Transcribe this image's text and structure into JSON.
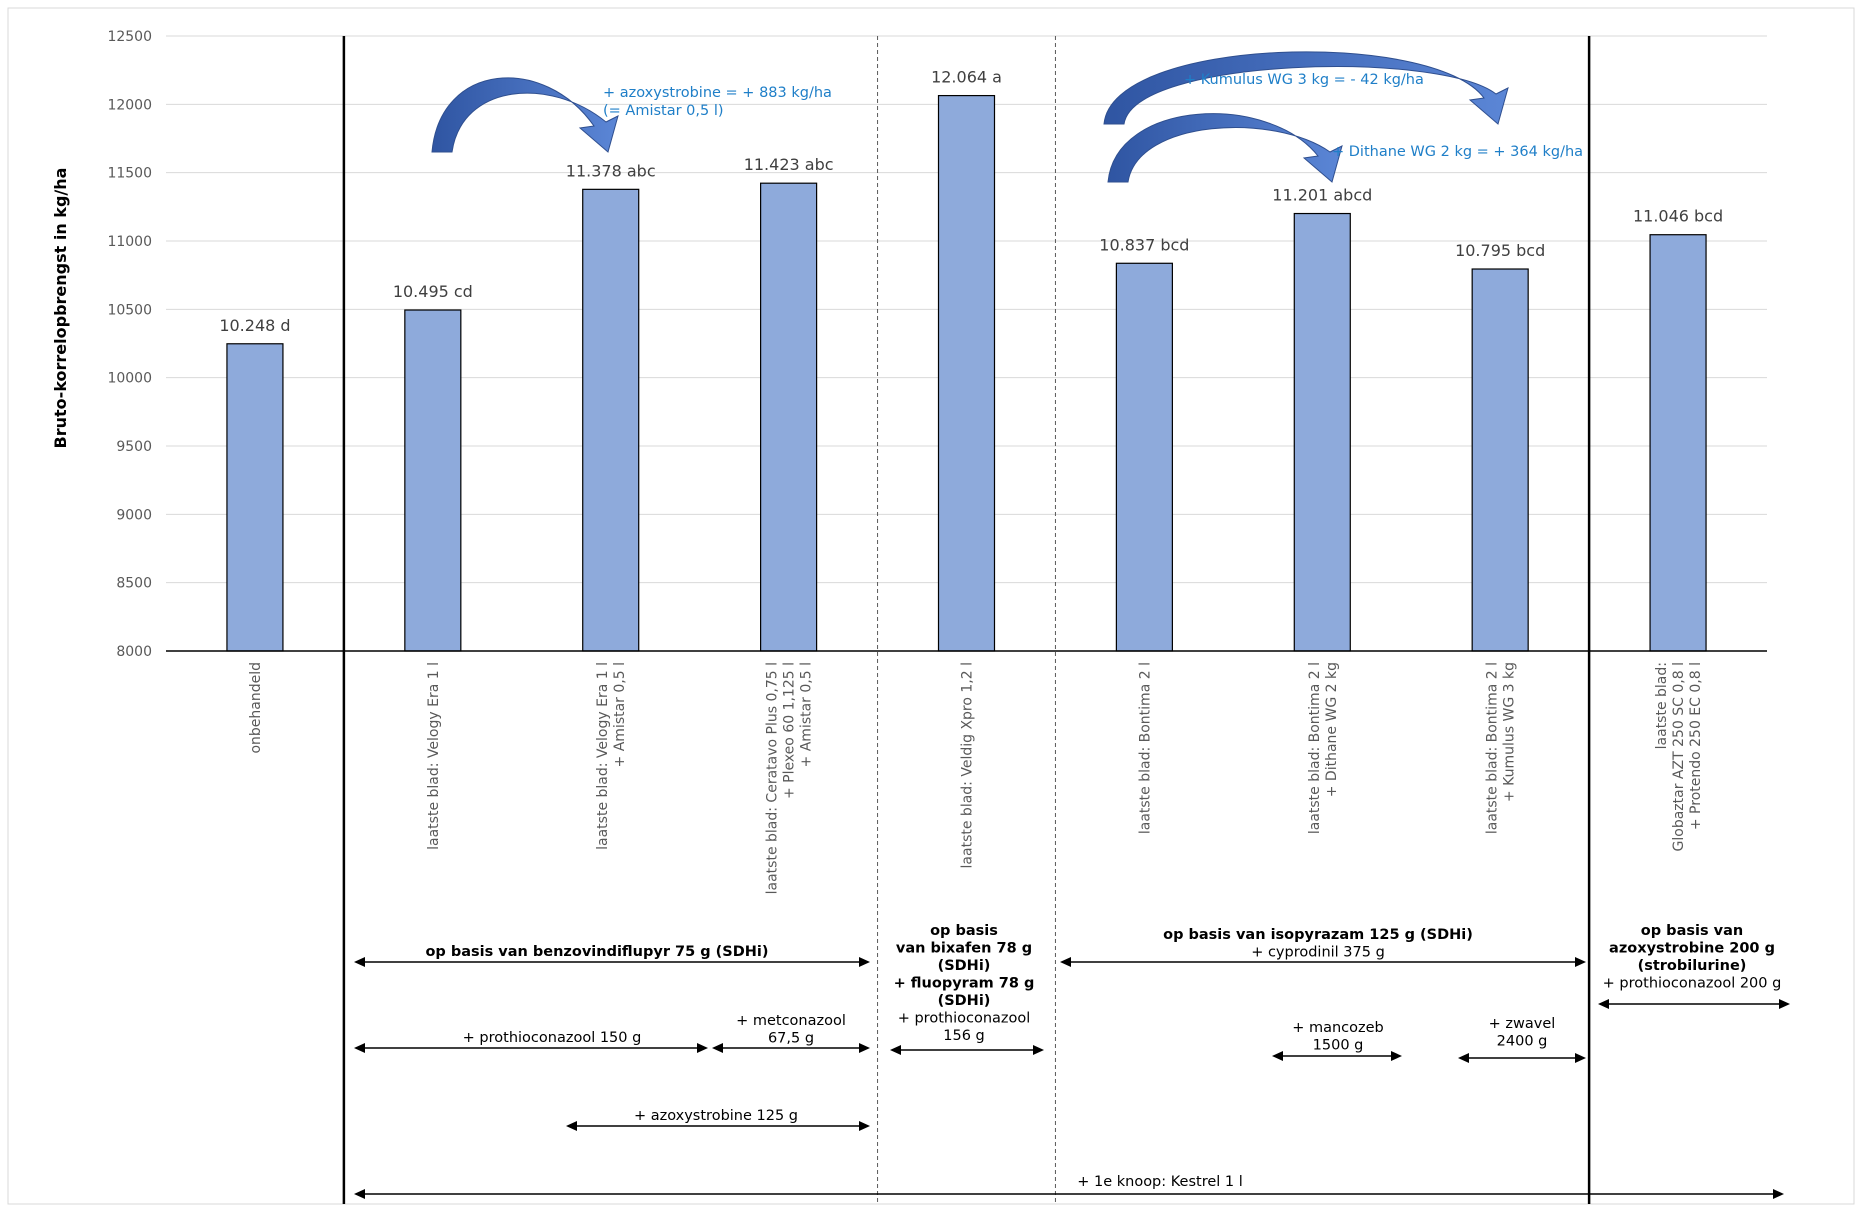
{
  "chart_data": {
    "type": "bar",
    "ylabel": "Bruto-korrelopbrengst in kg/ha",
    "ylim": [
      8000,
      12500
    ],
    "yticks": [
      "8000",
      "8500",
      "9000",
      "9500",
      "10000",
      "10500",
      "11000",
      "11500",
      "12000",
      "12500"
    ],
    "grid": true,
    "bar_color": "#8eaadb",
    "categories": [
      [
        "onbehandeld"
      ],
      [
        "laatste blad: Velogy Era 1 l"
      ],
      [
        "laatste blad: Velogy Era 1 l",
        "+ Amistar 0,5 l"
      ],
      [
        "laatste blad: Ceratavo Plus 0,75 l",
        "+ Plexeo 60 1,125 l",
        "+ Amistar 0,5 l"
      ],
      [
        "laatste blad: Veldig Xpro 1,2 l"
      ],
      [
        "laatste blad: Bontima 2 l"
      ],
      [
        "laatste blad: Bontima 2 l",
        "+ Dithane WG 2 kg"
      ],
      [
        "laatste blad: Bontima 2 l",
        "+ Kumulus WG 3 kg"
      ],
      [
        "laatste blad:",
        "Globaztar AZT 250 SC 0,8 l",
        "+ Protendo 250 EC 0,8 l"
      ]
    ],
    "values": [
      10248,
      10495,
      11378,
      11423,
      12064,
      10837,
      11201,
      10795,
      11046
    ],
    "data_labels": [
      "10.248  d",
      "10.495  cd",
      "11.378  abc",
      "11.423  abc",
      "12.064  a",
      "10.837  bcd",
      "11.201  abcd",
      "10.795  bcd",
      "11.046  bcd"
    ],
    "annotations": [
      {
        "lines": [
          "+ azoxystrobine = + 883 kg/ha",
          "(= Amistar 0,5 l)"
        ],
        "from_bar": 1,
        "to_bar": 2,
        "color": "#1f7fc8"
      },
      {
        "lines": [
          "+ Kumulus WG 3 kg = - 42 kg/ha"
        ],
        "from_bar": 5,
        "to_bar": 7,
        "color": "#1f7fc8"
      },
      {
        "lines": [
          "+ Dithane WG 2 kg = + 364 kg/ha"
        ],
        "from_bar": 5,
        "to_bar": 6,
        "color": "#1f7fc8"
      }
    ],
    "groups": [
      {
        "bold": [
          "op basis van benzovindiflupyr 75 g (SDHi)"
        ],
        "normal": []
      },
      {
        "bold": [
          "op basis",
          "van bixafen 78 g",
          "(SDHi)",
          "+ fluopyram 78 g",
          "(SDHi)"
        ],
        "normal": [
          "+ prothioconazool",
          "156 g"
        ]
      },
      {
        "bold": [
          "op basis van isopyrazam 125 g (SDHi)"
        ],
        "normal": [
          "+ cyprodinil 375 g"
        ]
      },
      {
        "bold": [
          "op basis van",
          "azoxystrobine 200 g",
          "(strobilurine)"
        ],
        "normal": [
          "+ prothioconazool 200 g"
        ]
      },
      {
        "bold": [],
        "normal": [
          "+ prothioconazool 150 g"
        ]
      },
      {
        "bold": [],
        "normal": [
          "+ metconazool",
          "67,5 g"
        ]
      },
      {
        "bold": [],
        "normal": [
          "+ mancozeb",
          "1500 g"
        ]
      },
      {
        "bold": [],
        "normal": [
          "+ zwavel",
          "2400 g"
        ]
      },
      {
        "bold": [],
        "normal": [
          "+ azoxystrobine 125 g"
        ]
      },
      {
        "bold": [],
        "normal": [
          "+ 1e knoop: Kestrel 1 l"
        ]
      }
    ]
  }
}
